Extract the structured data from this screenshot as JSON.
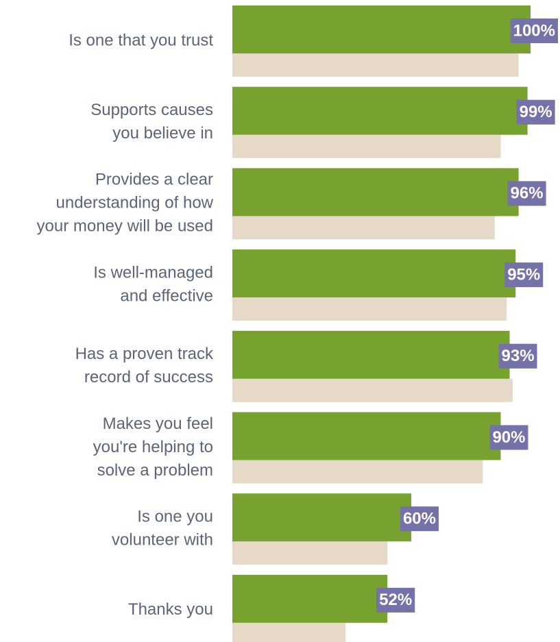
{
  "chart_data": {
    "type": "bar",
    "orientation": "horizontal",
    "categories": [
      [
        "Is one that you trust"
      ],
      [
        "Supports causes",
        "you believe in"
      ],
      [
        "Provides a clear",
        "understanding of how",
        "your money will be used"
      ],
      [
        "Is well-managed",
        "and effective"
      ],
      [
        "Has a proven track",
        "record of success"
      ],
      [
        "Makes you feel",
        "you're helping to",
        "solve a problem"
      ],
      [
        "Is one you",
        "volunteer with"
      ],
      [
        "Thanks you"
      ]
    ],
    "series": [
      {
        "color": "#78a22f",
        "values": [
          100,
          99,
          96,
          95,
          93,
          90,
          60,
          52
        ],
        "value_labels": [
          "100%",
          "99%",
          "96%",
          "95%",
          "93%",
          "90%",
          "60%",
          "52%"
        ],
        "label_color": "#7571a9"
      },
      {
        "color": "#e6d9c8",
        "values": [
          96,
          90,
          88,
          92,
          94,
          84,
          52,
          38
        ]
      }
    ],
    "xlim": [
      0,
      100
    ]
  }
}
